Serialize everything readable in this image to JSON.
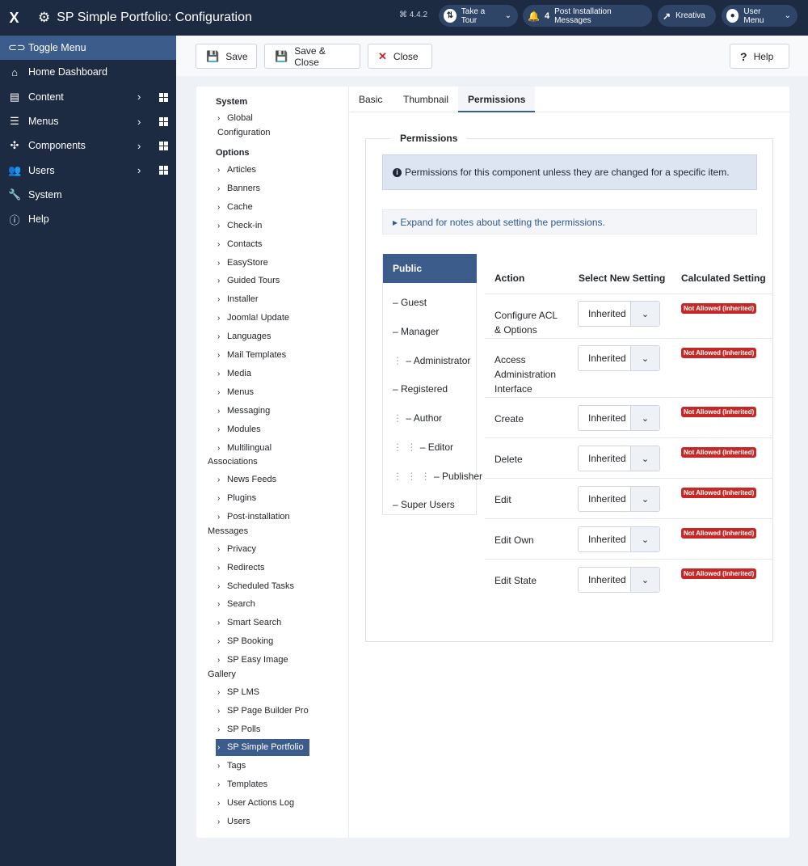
{
  "header": {
    "logo": "X",
    "title": "SP Simple Portfolio: Configuration",
    "version": "⌘ 4.4.2",
    "tour_label": "Take a Tour",
    "notif_count": "4",
    "notif_label": "Post Installation Messages",
    "site_label": "Kreativa",
    "user_label": "User Menu"
  },
  "sidebar": {
    "items": [
      {
        "label": "Toggle Menu",
        "icon": "toggle-icon"
      },
      {
        "label": "Home Dashboard",
        "icon": "home-icon"
      },
      {
        "label": "Content",
        "icon": "file-icon"
      },
      {
        "label": "Menus",
        "icon": "list-icon"
      },
      {
        "label": "Components",
        "icon": "puzzle-icon"
      },
      {
        "label": "Users",
        "icon": "users-icon"
      },
      {
        "label": "System",
        "icon": "wrench-icon"
      },
      {
        "label": "Help",
        "icon": "info-icon"
      }
    ]
  },
  "toolbar": {
    "save": "Save",
    "save_close": "Save & Close",
    "close": "Close",
    "help": "Help"
  },
  "nav": {
    "system_head": "System",
    "global_line1": "Global",
    "global_line2": "Configuration",
    "options_head": "Options",
    "items": [
      "Articles",
      "Banners",
      "Cache",
      "Check-in",
      "Contacts",
      "EasyStore",
      "Guided Tours",
      "Installer",
      "Joomla! Update",
      "Languages",
      "Mail Templates",
      "Media",
      "Menus",
      "Messaging",
      "Modules",
      "Multilingual",
      "Associations",
      "News Feeds",
      "Plugins",
      "Post-installation",
      "Messages",
      "Privacy",
      "Redirects",
      "Scheduled Tasks",
      "Search",
      "Smart Search",
      "SP Booking",
      "SP Easy Image",
      "Gallery",
      "SP LMS",
      "SP Page Builder Pro",
      "SP Polls",
      "SP Simple Portfolio",
      "Tags",
      "Templates",
      "User Actions Log",
      "Users"
    ]
  },
  "tabs": [
    "Basic",
    "Thumbnail",
    "Permissions"
  ],
  "permissions": {
    "legend": "Permissions",
    "alert": "Permissions for this component unless they are changed for a specific item.",
    "details": "▸ Expand for notes about setting the permissions.",
    "groups": [
      "Public",
      "– Guest",
      "– Manager",
      "– Administrator",
      "– Registered",
      "– Author",
      "– Editor",
      "– Publisher",
      "– Super Users"
    ],
    "group_dots": [
      "",
      "",
      "",
      "⋮",
      "",
      "⋮",
      "⋮ ⋮",
      "⋮ ⋮ ⋮",
      ""
    ],
    "col_action": "Action",
    "col_select": "Select New Setting",
    "col_calc": "Calculated Setting",
    "rows": [
      {
        "line1": "Configure ACL",
        "line2": "& Options",
        "line3": "",
        "value": "Inherited",
        "calc": "Not Allowed (Inherited)"
      },
      {
        "line1": "Access",
        "line2": "Administration",
        "line3": "Interface",
        "value": "Inherited",
        "calc": "Not Allowed (Inherited)"
      },
      {
        "line1": "Create",
        "line2": "",
        "line3": "",
        "value": "Inherited",
        "calc": "Not Allowed (Inherited)"
      },
      {
        "line1": "Delete",
        "line2": "",
        "line3": "",
        "value": "Inherited",
        "calc": "Not Allowed (Inherited)"
      },
      {
        "line1": "Edit",
        "line2": "",
        "line3": "",
        "value": "Inherited",
        "calc": "Not Allowed (Inherited)"
      },
      {
        "line1": "Edit Own",
        "line2": "",
        "line3": "",
        "value": "Inherited",
        "calc": "Not Allowed (Inherited)"
      },
      {
        "line1": "Edit State",
        "line2": "",
        "line3": "",
        "value": "Inherited",
        "calc": "Not Allowed (Inherited)"
      }
    ]
  }
}
